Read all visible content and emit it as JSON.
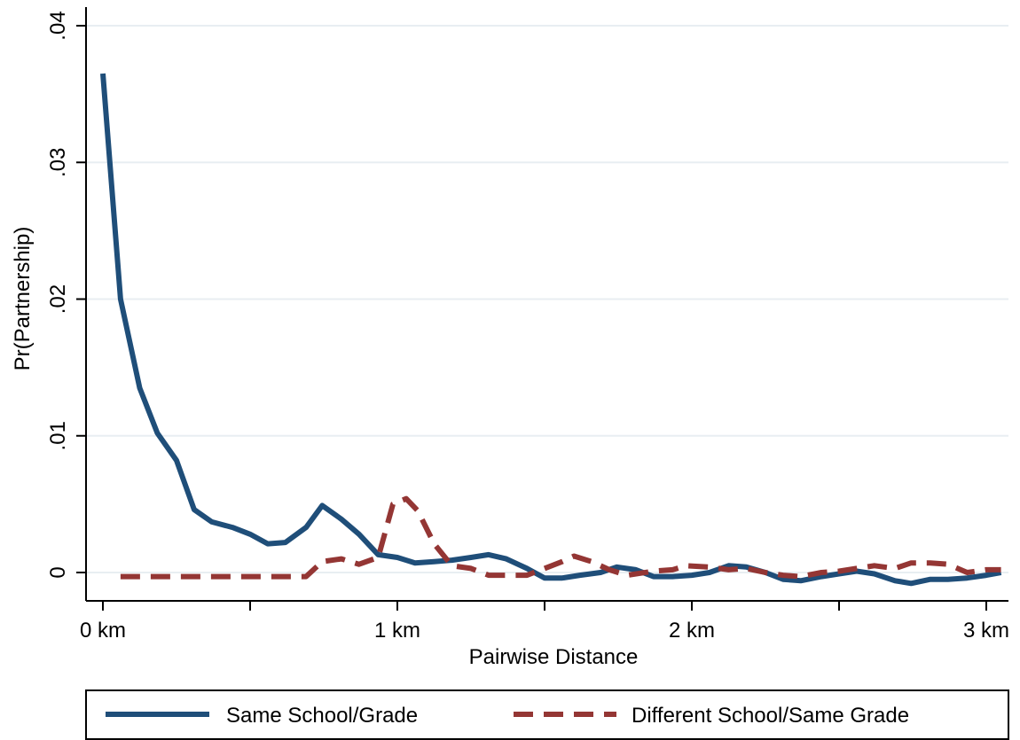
{
  "chart_data": {
    "type": "line",
    "title": "",
    "xlabel": "Pairwise Distance",
    "ylabel": "Pr(Partnership)",
    "xlim": [
      0,
      3.05
    ],
    "ylim": [
      -0.0025,
      0.04
    ],
    "x_ticks": [
      {
        "value": 0,
        "label": "0 km"
      },
      {
        "value": 1,
        "label": "1 km"
      },
      {
        "value": 2,
        "label": "2 km"
      },
      {
        "value": 3,
        "label": "3 km"
      }
    ],
    "x_minor_ticks": [
      0.5,
      1.5,
      2.5
    ],
    "y_ticks": [
      {
        "value": 0,
        "label": "0"
      },
      {
        "value": 0.01,
        "label": ".01"
      },
      {
        "value": 0.02,
        "label": ".02"
      },
      {
        "value": 0.03,
        "label": ".03"
      },
      {
        "value": 0.04,
        "label": ".04"
      }
    ],
    "grid": "horizontal",
    "legend_position": "bottom",
    "series": [
      {
        "name": "Same School/Grade",
        "color": "#1f4e79",
        "style": "solid",
        "points": [
          [
            0.0,
            0.0365
          ],
          [
            0.06,
            0.02
          ],
          [
            0.125,
            0.0135
          ],
          [
            0.185,
            0.0102
          ],
          [
            0.25,
            0.0082
          ],
          [
            0.31,
            0.0046
          ],
          [
            0.37,
            0.0037
          ],
          [
            0.44,
            0.0033
          ],
          [
            0.5,
            0.0028
          ],
          [
            0.56,
            0.0021
          ],
          [
            0.62,
            0.0022
          ],
          [
            0.69,
            0.0033
          ],
          [
            0.745,
            0.0049
          ],
          [
            0.81,
            0.0039
          ],
          [
            0.87,
            0.0028
          ],
          [
            0.935,
            0.0013
          ],
          [
            1.0,
            0.0011
          ],
          [
            1.06,
            0.0007
          ],
          [
            1.125,
            0.0008
          ],
          [
            1.185,
            0.0009
          ],
          [
            1.25,
            0.0011
          ],
          [
            1.31,
            0.0013
          ],
          [
            1.37,
            0.001
          ],
          [
            1.44,
            0.0003
          ],
          [
            1.5,
            -0.0004
          ],
          [
            1.56,
            -0.0004
          ],
          [
            1.62,
            -0.0002
          ],
          [
            1.69,
            0.0
          ],
          [
            1.745,
            0.0004
          ],
          [
            1.81,
            0.0002
          ],
          [
            1.87,
            -0.0003
          ],
          [
            1.935,
            -0.0003
          ],
          [
            2.0,
            -0.0002
          ],
          [
            2.06,
            0.0
          ],
          [
            2.125,
            0.0005
          ],
          [
            2.185,
            0.0004
          ],
          [
            2.25,
            0.0
          ],
          [
            2.31,
            -0.0005
          ],
          [
            2.37,
            -0.0006
          ],
          [
            2.44,
            -0.0003
          ],
          [
            2.5,
            -0.0001
          ],
          [
            2.56,
            0.0001
          ],
          [
            2.62,
            -0.0001
          ],
          [
            2.69,
            -0.0006
          ],
          [
            2.745,
            -0.0008
          ],
          [
            2.81,
            -0.0005
          ],
          [
            2.87,
            -0.0005
          ],
          [
            2.935,
            -0.0004
          ],
          [
            3.0,
            -0.0002
          ],
          [
            3.05,
            0.0
          ]
        ]
      },
      {
        "name": "Different School/Same Grade",
        "color": "#943634",
        "style": "dashed",
        "points": [
          [
            0.06,
            -0.0003
          ],
          [
            0.125,
            -0.0003
          ],
          [
            0.185,
            -0.0003
          ],
          [
            0.25,
            -0.0003
          ],
          [
            0.31,
            -0.0003
          ],
          [
            0.37,
            -0.0003
          ],
          [
            0.44,
            -0.0003
          ],
          [
            0.5,
            -0.0003
          ],
          [
            0.56,
            -0.0003
          ],
          [
            0.62,
            -0.0003
          ],
          [
            0.69,
            -0.0003
          ],
          [
            0.745,
            0.0008
          ],
          [
            0.81,
            0.001
          ],
          [
            0.87,
            0.0006
          ],
          [
            0.935,
            0.0011
          ],
          [
            0.985,
            0.005
          ],
          [
            1.03,
            0.0054
          ],
          [
            1.07,
            0.0045
          ],
          [
            1.125,
            0.0021
          ],
          [
            1.185,
            0.0005
          ],
          [
            1.25,
            0.0003
          ],
          [
            1.31,
            -0.0002
          ],
          [
            1.37,
            -0.0002
          ],
          [
            1.44,
            -0.0002
          ],
          [
            1.5,
            0.0003
          ],
          [
            1.56,
            0.0008
          ],
          [
            1.6,
            0.0012
          ],
          [
            1.66,
            0.0008
          ],
          [
            1.72,
            0.0002
          ],
          [
            1.78,
            -0.0002
          ],
          [
            1.87,
            0.0001
          ],
          [
            1.935,
            0.0002
          ],
          [
            1.98,
            0.0005
          ],
          [
            2.06,
            0.0004
          ],
          [
            2.125,
            0.0002
          ],
          [
            2.185,
            0.0003
          ],
          [
            2.25,
            0.0
          ],
          [
            2.31,
            -0.0002
          ],
          [
            2.37,
            -0.0003
          ],
          [
            2.44,
            0.0
          ],
          [
            2.5,
            0.0001
          ],
          [
            2.56,
            0.0003
          ],
          [
            2.62,
            0.0005
          ],
          [
            2.69,
            0.0003
          ],
          [
            2.745,
            0.0007
          ],
          [
            2.81,
            0.0007
          ],
          [
            2.87,
            0.0006
          ],
          [
            2.935,
            0.0
          ],
          [
            3.0,
            0.0002
          ],
          [
            3.05,
            0.0002
          ]
        ]
      }
    ]
  }
}
